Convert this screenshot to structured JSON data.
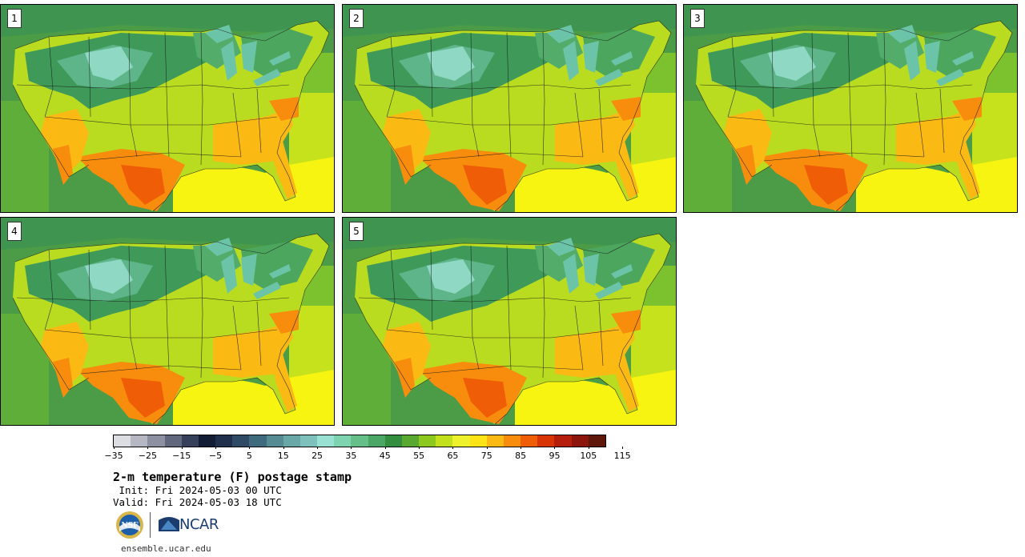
{
  "panels": [
    {
      "number": "1"
    },
    {
      "number": "2"
    },
    {
      "number": "3"
    },
    {
      "number": "4"
    },
    {
      "number": "5"
    }
  ],
  "colorbar": {
    "colors": [
      "#dcdde2",
      "#b5b7c2",
      "#8c90a1",
      "#61677c",
      "#36405a",
      "#131c35",
      "#1f2f4c",
      "#2e4a65",
      "#3f6a7d",
      "#578b93",
      "#6aa8a8",
      "#7ec1bc",
      "#99e2d3",
      "#7ed4b0",
      "#64bf88",
      "#4aa765",
      "#338e40",
      "#59a82f",
      "#8cc81e",
      "#c2e01b",
      "#eef22c",
      "#fde416",
      "#fbb914",
      "#f88d0d",
      "#ef5e06",
      "#d83406",
      "#b51e0a",
      "#8c150e",
      "#5f170b"
    ],
    "tick_labels": [
      "−35",
      "−25",
      "−15",
      "−5",
      "5",
      "15",
      "25",
      "35",
      "45",
      "55",
      "65",
      "75",
      "85",
      "95",
      "105",
      "115"
    ]
  },
  "title": "2-m temperature (F) postage stamp",
  "init": " Init: Fri 2024-05-03 00 UTC",
  "valid": "Valid: Fri 2024-05-03 18 UTC",
  "logos": {
    "nsf_text": "NSF",
    "ncar_text": "NCAR",
    "nsf_color": "#1c5fa8",
    "ncar_color": "#1b3d6e"
  },
  "website": "ensemble.ucar.edu"
}
